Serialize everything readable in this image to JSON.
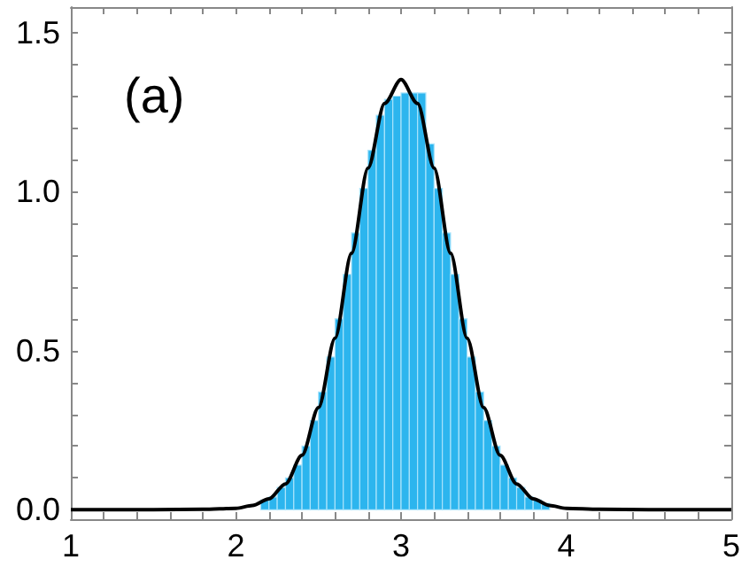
{
  "chart_data": {
    "type": "histogram",
    "annotations": [
      "(a)"
    ],
    "bins": [
      2.15,
      2.2,
      2.25,
      2.3,
      2.35,
      2.4,
      2.45,
      2.5,
      2.55,
      2.6,
      2.65,
      2.7,
      2.75,
      2.8,
      2.85,
      2.9,
      2.95,
      3.0,
      3.05,
      3.1,
      3.15,
      3.2,
      3.25,
      3.3,
      3.35,
      3.4,
      3.45,
      3.5,
      3.55,
      3.6,
      3.65,
      3.7,
      3.75,
      3.8,
      3.85,
      3.9
    ],
    "values": [
      0.03,
      0.04,
      0.07,
      0.1,
      0.14,
      0.2,
      0.28,
      0.37,
      0.48,
      0.6,
      0.74,
      0.87,
      1.01,
      1.13,
      1.24,
      1.29,
      1.3,
      1.31,
      1.31,
      1.31,
      1.15,
      1.01,
      0.87,
      0.74,
      0.6,
      0.48,
      0.37,
      0.28,
      0.2,
      0.14,
      0.1,
      0.07,
      0.04,
      0.03,
      0.02
    ],
    "color": "#2cb5ee",
    "series": [
      {
        "type": "line",
        "color": "#000000",
        "x": [
          1,
          1.5,
          1.8,
          2,
          2.1,
          2.2,
          2.3,
          2.4,
          2.5,
          2.6,
          2.7,
          2.8,
          2.9,
          3,
          3.1,
          3.2,
          3.3,
          3.4,
          3.5,
          3.6,
          3.7,
          3.8,
          3.9,
          4,
          4.2,
          4.5,
          5
        ],
        "values": [
          0,
          0,
          0.001,
          0.004,
          0.013,
          0.034,
          0.081,
          0.171,
          0.321,
          0.539,
          0.806,
          1.074,
          1.277,
          1.352,
          1.277,
          1.074,
          0.806,
          0.539,
          0.321,
          0.171,
          0.081,
          0.034,
          0.013,
          0.004,
          0.001,
          0,
          0
        ]
      }
    ],
    "xlim": [
      1,
      5
    ],
    "xticks": [
      1,
      {
        "value": 1.2,
        "label": null
      },
      {
        "value": 1.4,
        "label": null
      },
      {
        "value": 1.6,
        "label": null
      },
      {
        "value": 1.8,
        "label": null
      },
      2,
      {
        "value": 2.2,
        "label": null
      },
      {
        "value": 2.4,
        "label": null
      },
      {
        "value": 2.6,
        "label": null
      },
      {
        "value": 2.8,
        "label": null
      },
      3,
      {
        "value": 3.2,
        "label": null
      },
      {
        "value": 3.4,
        "label": null
      },
      {
        "value": 3.6,
        "label": null
      },
      {
        "value": 3.8,
        "label": null
      },
      4,
      {
        "value": 4.2,
        "label": null
      },
      {
        "value": 4.4,
        "label": null
      },
      {
        "value": 4.6,
        "label": null
      },
      {
        "value": 4.8,
        "label": null
      },
      5
    ],
    "ylim": [
      -0.03,
      1.58
    ],
    "yticks": [
      {
        "value": 0,
        "label": "0.0"
      },
      {
        "value": 0.1,
        "label": null
      },
      {
        "value": 0.2,
        "label": null
      },
      {
        "value": 0.3,
        "label": null
      },
      {
        "value": 0.4,
        "label": null
      },
      0.5,
      {
        "value": 0.6,
        "label": null
      },
      {
        "value": 0.7,
        "label": null
      },
      {
        "value": 0.8,
        "label": null
      },
      {
        "value": 0.9,
        "label": null
      },
      {
        "value": 1,
        "label": "1.0"
      },
      {
        "value": 1.1,
        "label": null
      },
      {
        "value": 1.2,
        "label": null
      },
      {
        "value": 1.3,
        "label": null
      },
      {
        "value": 1.4,
        "label": null
      },
      1.5
    ],
    "grid": false,
    "marker": "none",
    "line_style": "solid"
  }
}
